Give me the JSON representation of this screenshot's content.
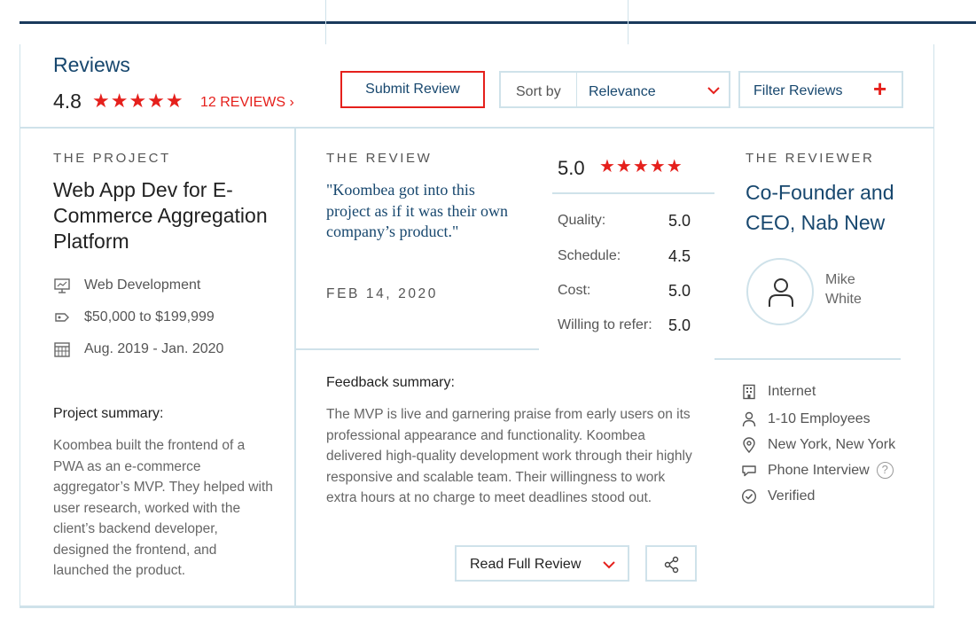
{
  "header": {
    "title": "Reviews",
    "rating": "4.8",
    "stars": "★★★★★",
    "review_count": "12 REVIEWS  ›",
    "submit_label": "Submit Review",
    "sort_label": "Sort by",
    "sort_value": "Relevance",
    "filter_label": "Filter Reviews",
    "filter_plus": "+"
  },
  "project": {
    "section_label": "THE PROJECT",
    "title": "Web App Dev for E-Commerce Aggregation Platform",
    "service": "Web Development",
    "budget": "$50,000 to $199,999",
    "dates": "Aug. 2019 - Jan. 2020",
    "summary_heading": "Project summary:",
    "summary": "Koombea built the frontend of a PWA as an e-commerce aggregator’s MVP. They helped with user research, worked with the client’s backend developer, designed the frontend, and launched the product."
  },
  "review": {
    "section_label": "THE REVIEW",
    "quote": "\"Koombea got into this project as if it was their own company’s product.\"",
    "date": "FEB 14, 2020",
    "overall": "5.0",
    "overall_stars": "★★★★★",
    "ratings": [
      {
        "label": "Quality:",
        "value": "5.0"
      },
      {
        "label": "Schedule:",
        "value": "4.5"
      },
      {
        "label": "Cost:",
        "value": "5.0"
      },
      {
        "label": "Willing to refer:",
        "value": "5.0"
      }
    ],
    "feedback_heading": "Feedback summary:",
    "feedback": "The MVP is live and garnering praise from early users on its professional appearance and functionality. Koombea delivered high-quality development work through their highly responsive and scalable team. Their willingness to work extra hours at no charge to meet deadlines stood out.",
    "read_full_label": "Read Full Review"
  },
  "reviewer": {
    "section_label": "THE REVIEWER",
    "title": "Co-Founder and CEO, Nab New",
    "name": "Mike White",
    "industry": "Internet",
    "size": "1-10 Employees",
    "location": "New York, New York",
    "interview": "Phone Interview",
    "help": "?",
    "status": "Verified"
  },
  "colors": {
    "accent": "#e5201c",
    "brand": "#17476e",
    "border": "#cfe2ea"
  }
}
